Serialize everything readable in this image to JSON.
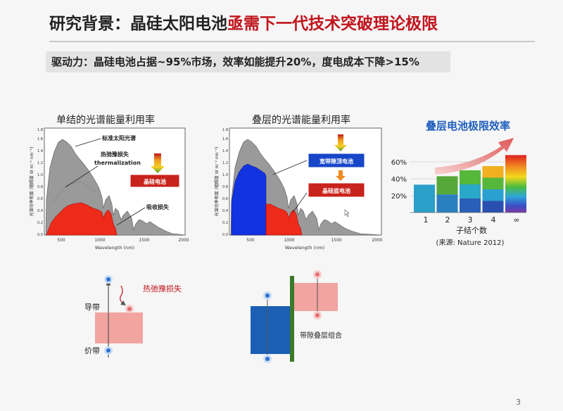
{
  "title": {
    "main": "研究背景：晶硅太阳电池",
    "highlight": "亟需下一代技术突破理论极限"
  },
  "banner": "驱动力：晶硅电池占据~95%市场，效率如能提升20%，度电成本下降>15%",
  "left_panel": {
    "title": "单结的光谱能量利用率",
    "ylabel": "光谱功率密度 (辐照度 W m⁻² nm⁻¹)",
    "xlabel": "Wavelength (nm)",
    "xticks": [
      "500",
      "1000",
      "1500",
      "2000"
    ],
    "yticks": [
      "0.0",
      "0.2",
      "0.4",
      "0.6",
      "0.8",
      "1.0",
      "1.2",
      "1.4",
      "1.6",
      "1.8"
    ],
    "label_spectrum": "标准太阳光谱",
    "label_thermal_cn": "热弛豫损失",
    "label_thermal_en": "thermalization",
    "label_cell": "晶硅电池",
    "label_absorb": "吸收损失"
  },
  "right_panel": {
    "title": "叠层的光谱能量利用率",
    "ylabel": "光谱功率密度 (辐照度 W m⁻² nm⁻¹)",
    "xlabel": "Wavelength (nm)",
    "xticks": [
      "500",
      "1000",
      "1500",
      "2000"
    ],
    "yticks": [
      "0.0",
      "0.2",
      "0.4",
      "0.6",
      "0.8",
      "1.0",
      "1.2",
      "1.4",
      "1.6",
      "1.8"
    ],
    "label_top": "宽带隙顶电池",
    "label_bottom": "晶硅底电池"
  },
  "limit_chart": {
    "title": "叠层电池极限效率",
    "yticks": [
      "20%",
      "40%",
      "60%"
    ],
    "xlabel": "子结个数",
    "source": "(来源: Nature 2012)",
    "type": "bar",
    "categories": [
      "1",
      "2",
      "3",
      "4",
      "∞"
    ],
    "values": [
      33,
      43,
      50,
      55,
      68
    ]
  },
  "band_left": {
    "cb_label": "导带",
    "vb_label": "价带",
    "loss_label": "热弛豫损失"
  },
  "band_right": {
    "label": "带隙叠层组合"
  },
  "colors": {
    "accent": "#c0141c",
    "spectrum": "#9a9a9a",
    "silicon": "#ee2a1a",
    "top_cell": "#1233e0",
    "band": "#f2a4a0",
    "bar_blue": "#1b5fb5",
    "electrode": "#3a7a2a"
  },
  "page_number": "3"
}
